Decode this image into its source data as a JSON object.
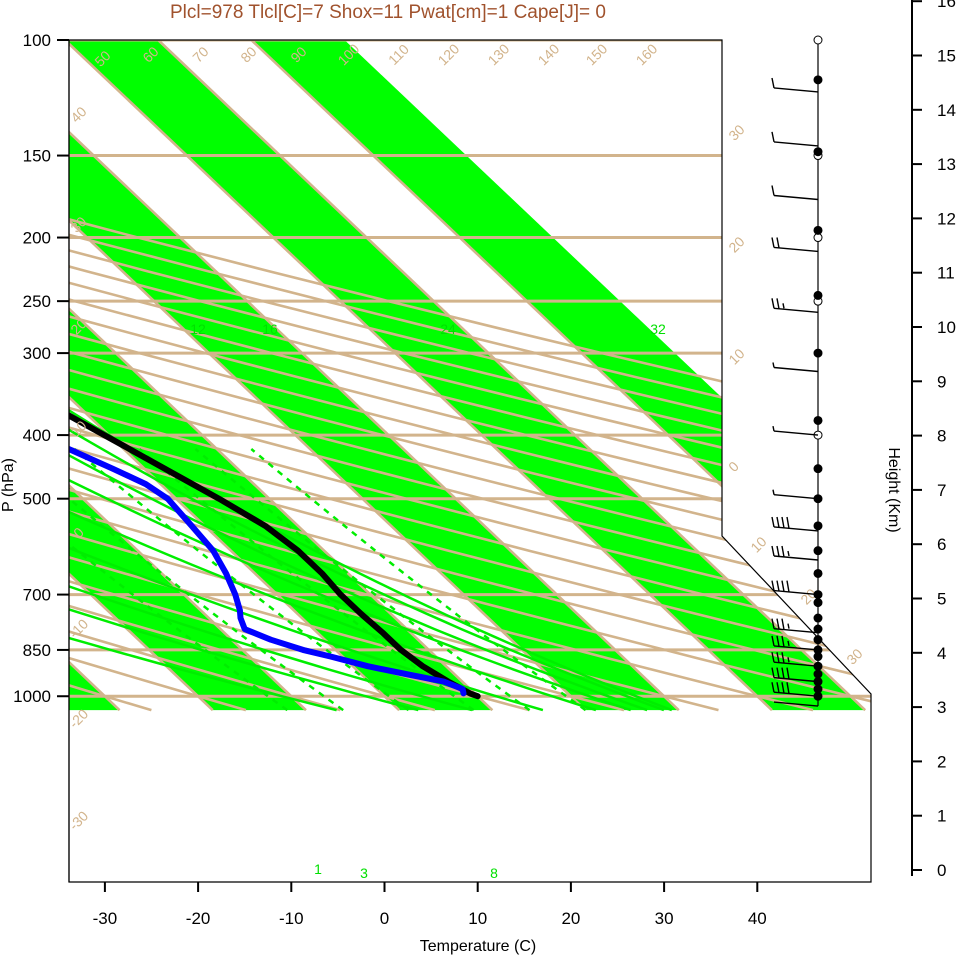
{
  "title": "Plcl=978 Tlcl[C]=7 Shox=11 Pwat[cm]=1 Cape[J]= 0",
  "colors": {
    "band": "#00ff00",
    "grid": "#d2b48c",
    "moist": "#00ee00",
    "temperature": "#000000",
    "dewpoint": "#0000ff",
    "title": "#a0522d"
  },
  "chart_data": {
    "type": "line",
    "title": "Plcl=978 Tlcl[C]=7 Shox=11 Pwat[cm]=1 Cape[J]= 0",
    "xlabel": "Temperature (C)",
    "ylabel": "P (hPa)",
    "y2label": "Height (Km)",
    "xlim": [
      -34,
      42
    ],
    "ylim": [
      1050,
      100
    ],
    "y_scale": "log",
    "x_ticks": [
      -30,
      -20,
      -10,
      0,
      10,
      20,
      30,
      40
    ],
    "pressure_ticks": [
      100,
      150,
      200,
      250,
      300,
      400,
      500,
      700,
      850,
      1000
    ],
    "height_ticks": [
      0,
      1,
      2,
      3,
      4,
      5,
      6,
      7,
      8,
      9,
      10,
      11,
      12,
      13,
      14,
      15,
      16
    ],
    "isotherm_labels": [
      "50",
      "60",
      "70",
      "80",
      "90",
      "100",
      "110",
      "120",
      "130",
      "140",
      "150",
      "160",
      "40",
      "30",
      "20",
      "10",
      "0",
      "-10",
      "-20",
      "-30",
      "30",
      "20",
      "10",
      "0",
      "10",
      "20",
      "30"
    ],
    "mixing_ratio_labels": [
      "12",
      "16",
      "24",
      "32",
      "3",
      "8",
      "1"
    ],
    "series": [
      {
        "name": "temperature",
        "pressure": [
          1000,
          990,
          950,
          900,
          850,
          800,
          750,
          700,
          650,
          600,
          550,
          500,
          450,
          400,
          350,
          300,
          270,
          250,
          230,
          200,
          180,
          165,
          150,
          135,
          120,
          110
        ],
        "values": [
          10.0,
          9.5,
          8.5,
          7.5,
          7.0,
          7.0,
          6.8,
          6.8,
          7.2,
          7.2,
          6.5,
          4.6,
          2.2,
          -0.5,
          -3.6,
          -7.4,
          -9.2,
          -9.9,
          -10.0,
          -8.8,
          -7.1,
          -4.3,
          0.2,
          6.0,
          11.8,
          17.0
        ]
      },
      {
        "name": "dewpoint",
        "pressure": [
          990,
          975,
          950,
          925,
          900,
          870,
          850,
          820,
          790,
          760,
          740,
          700,
          650,
          600,
          550,
          500,
          475,
          450,
          420,
          400,
          370,
          340,
          300,
          270,
          250,
          230,
          200,
          180,
          165,
          150,
          135,
          120,
          110
        ],
        "values": [
          8.8,
          9.2,
          8.0,
          4.8,
          1.6,
          -1.3,
          -3.5,
          -5.8,
          -7.4,
          -6.6,
          -5.8,
          -4.5,
          -3.1,
          -1.9,
          -1.4,
          -0.9,
          -1.6,
          -3.4,
          -5.9,
          -7.6,
          -10.2,
          -12.3,
          -14.8,
          -16.0,
          -16.2,
          -15.9,
          -15.5,
          -15.3,
          -15.1,
          -16.2,
          -13.5,
          -10.0,
          -7.7
        ]
      }
    ],
    "wind_barbs": [
      {
        "pressure": 1035,
        "speed_kt": 0
      },
      {
        "pressure": 1000,
        "speed_kt": 40
      },
      {
        "pressure": 950,
        "speed_kt": 40
      },
      {
        "pressure": 900,
        "speed_kt": 35
      },
      {
        "pressure": 850,
        "speed_kt": 35
      },
      {
        "pressure": 800,
        "speed_kt": 35
      },
      {
        "pressure": 700,
        "speed_kt": 40
      },
      {
        "pressure": 620,
        "speed_kt": 35
      },
      {
        "pressure": 560,
        "speed_kt": 40
      },
      {
        "pressure": 500,
        "speed_kt": 5
      },
      {
        "pressure": 400,
        "speed_kt": 5
      },
      {
        "pressure": 320,
        "speed_kt": 5
      },
      {
        "pressure": 260,
        "speed_kt": 25
      },
      {
        "pressure": 210,
        "speed_kt": 20
      },
      {
        "pressure": 175,
        "speed_kt": 10
      },
      {
        "pressure": 145,
        "speed_kt": 10
      },
      {
        "pressure": 120,
        "speed_kt": 10
      }
    ],
    "height_markers": [
      {
        "pressure": 1000,
        "filled": true
      },
      {
        "pressure": 975,
        "filled": true
      },
      {
        "pressure": 950,
        "filled": true
      },
      {
        "pressure": 925,
        "filled": true
      },
      {
        "pressure": 900,
        "filled": true
      },
      {
        "pressure": 870,
        "filled": true
      },
      {
        "pressure": 850,
        "filled": true
      },
      {
        "pressure": 820,
        "filled": true
      },
      {
        "pressure": 790,
        "filled": true
      },
      {
        "pressure": 760,
        "filled": true
      },
      {
        "pressure": 720,
        "filled": true
      },
      {
        "pressure": 700,
        "filled": true
      },
      {
        "pressure": 650,
        "filled": true
      },
      {
        "pressure": 600,
        "filled": true
      },
      {
        "pressure": 550,
        "filled": true
      },
      {
        "pressure": 500,
        "filled": true
      },
      {
        "pressure": 450,
        "filled": true
      },
      {
        "pressure": 400,
        "filled": false
      },
      {
        "pressure": 380,
        "filled": true
      },
      {
        "pressure": 300,
        "filled": true
      },
      {
        "pressure": 250,
        "filled": false
      },
      {
        "pressure": 245,
        "filled": true
      },
      {
        "pressure": 200,
        "filled": false
      },
      {
        "pressure": 195,
        "filled": true
      },
      {
        "pressure": 150,
        "filled": false
      },
      {
        "pressure": 148,
        "filled": true
      },
      {
        "pressure": 115,
        "filled": true
      },
      {
        "pressure": 100,
        "filled": false
      }
    ]
  }
}
